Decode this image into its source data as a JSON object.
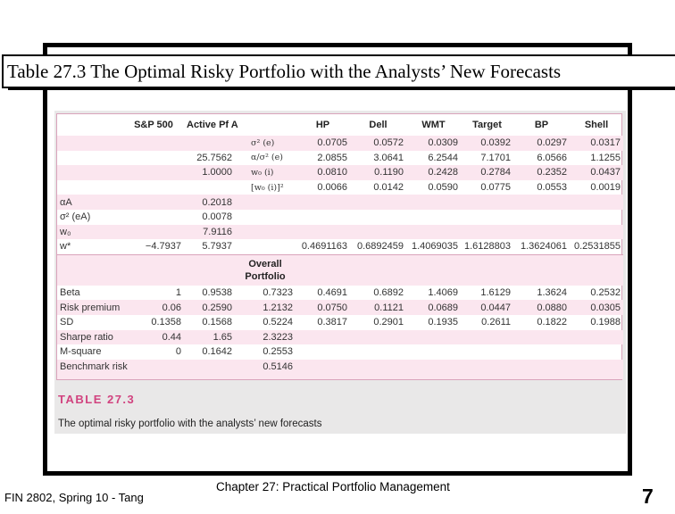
{
  "title": "Table 27.3 The Optimal Risky Portfolio with the Analysts’ New Forecasts",
  "table": {
    "headers": [
      "",
      "S&P 500",
      "Active Pf A",
      "",
      "HP",
      "Dell",
      "WMT",
      "Target",
      "BP",
      "Shell"
    ],
    "top_rows": [
      [
        "",
        "",
        "",
        "σ² (e)",
        "0.0705",
        "0.0572",
        "0.0309",
        "0.0392",
        "0.0297",
        "0.0317"
      ],
      [
        "",
        "",
        "25.7562",
        "α/σ² (e)",
        "2.0855",
        "3.0641",
        "6.2544",
        "7.1701",
        "6.0566",
        "1.1255"
      ],
      [
        "",
        "",
        "1.0000",
        "w₀ (i)",
        "0.0810",
        "0.1190",
        "0.2428",
        "0.2784",
        "0.2352",
        "0.0437"
      ],
      [
        "",
        "",
        "",
        "[w₀ (i)]²",
        "0.0066",
        "0.0142",
        "0.0590",
        "0.0775",
        "0.0553",
        "0.0019"
      ],
      [
        "αA",
        "",
        "0.2018",
        "",
        "",
        "",
        "",
        "",
        "",
        ""
      ],
      [
        "σ² (eA)",
        "",
        "0.0078",
        "",
        "",
        "",
        "",
        "",
        "",
        ""
      ],
      [
        "w₀",
        "",
        "7.9116",
        "",
        "",
        "",
        "",
        "",
        "",
        ""
      ],
      [
        "w*",
        "−4.7937",
        "5.7937",
        "",
        "0.4691163",
        "0.6892459",
        "1.4069035",
        "1.6128803",
        "1.3624061",
        "0.2531855"
      ]
    ],
    "overall_header_line1": "Overall",
    "overall_header_line2": "Portfolio",
    "bottom_rows": [
      [
        "Beta",
        "1",
        "0.9538",
        "0.7323",
        "0.4691",
        "0.6892",
        "1.4069",
        "1.6129",
        "1.3624",
        "0.2532"
      ],
      [
        "Risk premium",
        "0.06",
        "0.2590",
        "1.2132",
        "0.0750",
        "0.1121",
        "0.0689",
        "0.0447",
        "0.0880",
        "0.0305"
      ],
      [
        "SD",
        "0.1358",
        "0.1568",
        "0.5224",
        "0.3817",
        "0.2901",
        "0.1935",
        "0.2611",
        "0.1822",
        "0.1988"
      ],
      [
        "Sharpe ratio",
        "0.44",
        "1.65",
        "2.3223",
        "",
        "",
        "",
        "",
        "",
        ""
      ],
      [
        "M-square",
        "0",
        "0.1642",
        "0.2553",
        "",
        "",
        "",
        "",
        "",
        ""
      ],
      [
        "Benchmark risk",
        "",
        "",
        "0.5146",
        "",
        "",
        "",
        "",
        "",
        ""
      ]
    ],
    "caption_number": "TABLE 27.3",
    "caption_text": "The optimal risky portfolio with the analysts’ new forecasts"
  },
  "footer": {
    "left": "FIN 2802, Spring 10 - Tang",
    "center": "Chapter 27: Practical Portfolio Management",
    "page": "7"
  }
}
